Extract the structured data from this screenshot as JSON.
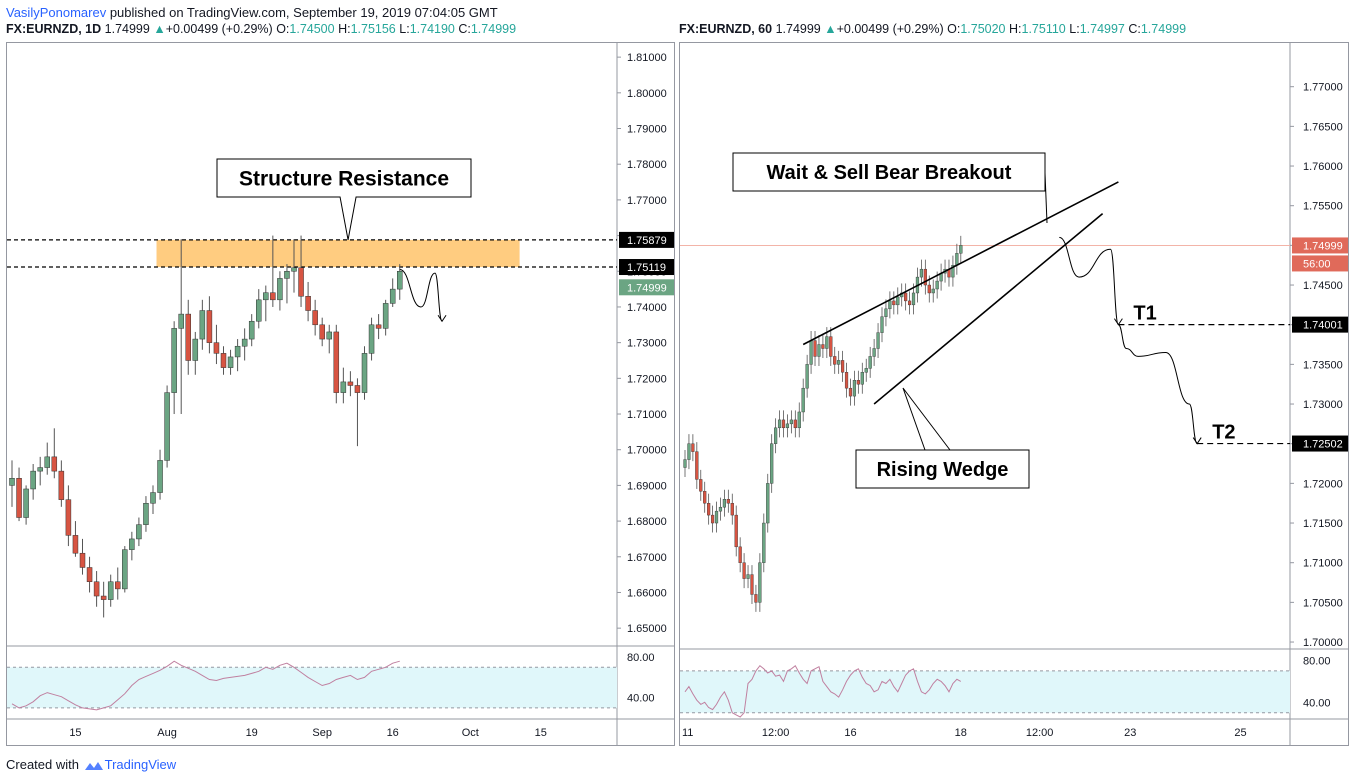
{
  "header": {
    "author": "VasilyPonomarev",
    "published_text": "published on TradingView.com, September 19, 2019 07:04:05 GMT"
  },
  "footer": {
    "created_with": "Created with",
    "brand": "TradingView"
  },
  "colors": {
    "up": "#6ba583",
    "down": "#d75442",
    "resistance_zone": "#ffcc80",
    "rsi_band": "#e0f7fa",
    "rsi_line": "#c080a0",
    "price_label_bg": "#000000",
    "current_price_up_bg": "#6ba583",
    "current_price_down_bg": "#e06a5a"
  },
  "icons": [
    "tradingview-logo-icon",
    "up-arrow-icon"
  ],
  "chart_data": [
    {
      "type": "candlestick",
      "symbol": "FX:EURNZD",
      "interval": "1D",
      "last": "1.74999",
      "change": "+0.00499 (+0.29%)",
      "ohlc": {
        "O": "1.74500",
        "H": "1.75156",
        "L": "1.74190",
        "C": "1.74999"
      },
      "ylim": [
        1.645,
        1.812
      ],
      "y_ticks": [
        "1.81000",
        "1.80000",
        "1.79000",
        "1.78000",
        "1.77000",
        "1.76000",
        "1.75000",
        "1.74000",
        "1.73000",
        "1.72000",
        "1.71000",
        "1.70000",
        "1.69000",
        "1.68000",
        "1.67000",
        "1.66000",
        "1.65000"
      ],
      "x_ticks": [
        {
          "label": "15",
          "index": 9
        },
        {
          "label": "Aug",
          "index": 22
        },
        {
          "label": "19",
          "index": 34
        },
        {
          "label": "Sep",
          "index": 44
        },
        {
          "label": "16",
          "index": 54
        },
        {
          "label": "Oct",
          "index": 65
        },
        {
          "label": "15",
          "index": 75
        }
      ],
      "candles": [
        {
          "o": 1.69,
          "h": 1.697,
          "l": 1.684,
          "c": 1.692
        },
        {
          "o": 1.692,
          "h": 1.695,
          "l": 1.68,
          "c": 1.681
        },
        {
          "o": 1.681,
          "h": 1.69,
          "l": 1.679,
          "c": 1.689
        },
        {
          "o": 1.689,
          "h": 1.696,
          "l": 1.686,
          "c": 1.694
        },
        {
          "o": 1.694,
          "h": 1.698,
          "l": 1.69,
          "c": 1.695
        },
        {
          "o": 1.695,
          "h": 1.702,
          "l": 1.693,
          "c": 1.698
        },
        {
          "o": 1.698,
          "h": 1.706,
          "l": 1.692,
          "c": 1.694
        },
        {
          "o": 1.694,
          "h": 1.697,
          "l": 1.684,
          "c": 1.686
        },
        {
          "o": 1.686,
          "h": 1.69,
          "l": 1.673,
          "c": 1.676
        },
        {
          "o": 1.676,
          "h": 1.68,
          "l": 1.67,
          "c": 1.671
        },
        {
          "o": 1.671,
          "h": 1.675,
          "l": 1.665,
          "c": 1.667
        },
        {
          "o": 1.667,
          "h": 1.67,
          "l": 1.66,
          "c": 1.663
        },
        {
          "o": 1.663,
          "h": 1.666,
          "l": 1.656,
          "c": 1.659
        },
        {
          "o": 1.659,
          "h": 1.663,
          "l": 1.653,
          "c": 1.658
        },
        {
          "o": 1.658,
          "h": 1.665,
          "l": 1.656,
          "c": 1.663
        },
        {
          "o": 1.663,
          "h": 1.667,
          "l": 1.658,
          "c": 1.661
        },
        {
          "o": 1.661,
          "h": 1.673,
          "l": 1.66,
          "c": 1.672
        },
        {
          "o": 1.672,
          "h": 1.677,
          "l": 1.669,
          "c": 1.675
        },
        {
          "o": 1.675,
          "h": 1.681,
          "l": 1.673,
          "c": 1.679
        },
        {
          "o": 1.679,
          "h": 1.687,
          "l": 1.677,
          "c": 1.685
        },
        {
          "o": 1.685,
          "h": 1.69,
          "l": 1.682,
          "c": 1.688
        },
        {
          "o": 1.688,
          "h": 1.7,
          "l": 1.686,
          "c": 1.697
        },
        {
          "o": 1.697,
          "h": 1.718,
          "l": 1.695,
          "c": 1.716
        },
        {
          "o": 1.716,
          "h": 1.736,
          "l": 1.71,
          "c": 1.734
        },
        {
          "o": 1.734,
          "h": 1.759,
          "l": 1.71,
          "c": 1.738
        },
        {
          "o": 1.738,
          "h": 1.742,
          "l": 1.721,
          "c": 1.725
        },
        {
          "o": 1.725,
          "h": 1.733,
          "l": 1.721,
          "c": 1.731
        },
        {
          "o": 1.731,
          "h": 1.742,
          "l": 1.728,
          "c": 1.739
        },
        {
          "o": 1.739,
          "h": 1.743,
          "l": 1.727,
          "c": 1.73
        },
        {
          "o": 1.73,
          "h": 1.735,
          "l": 1.724,
          "c": 1.727
        },
        {
          "o": 1.727,
          "h": 1.729,
          "l": 1.721,
          "c": 1.723
        },
        {
          "o": 1.723,
          "h": 1.728,
          "l": 1.721,
          "c": 1.726
        },
        {
          "o": 1.726,
          "h": 1.731,
          "l": 1.722,
          "c": 1.729
        },
        {
          "o": 1.729,
          "h": 1.734,
          "l": 1.725,
          "c": 1.731
        },
        {
          "o": 1.731,
          "h": 1.738,
          "l": 1.729,
          "c": 1.736
        },
        {
          "o": 1.736,
          "h": 1.745,
          "l": 1.734,
          "c": 1.742
        },
        {
          "o": 1.742,
          "h": 1.746,
          "l": 1.736,
          "c": 1.744
        },
        {
          "o": 1.744,
          "h": 1.76,
          "l": 1.74,
          "c": 1.742
        },
        {
          "o": 1.742,
          "h": 1.75,
          "l": 1.739,
          "c": 1.748
        },
        {
          "o": 1.748,
          "h": 1.752,
          "l": 1.741,
          "c": 1.75
        },
        {
          "o": 1.75,
          "h": 1.759,
          "l": 1.744,
          "c": 1.751
        },
        {
          "o": 1.751,
          "h": 1.76,
          "l": 1.74,
          "c": 1.743
        },
        {
          "o": 1.743,
          "h": 1.747,
          "l": 1.736,
          "c": 1.739
        },
        {
          "o": 1.739,
          "h": 1.742,
          "l": 1.732,
          "c": 1.735
        },
        {
          "o": 1.735,
          "h": 1.737,
          "l": 1.729,
          "c": 1.731
        },
        {
          "o": 1.731,
          "h": 1.735,
          "l": 1.727,
          "c": 1.733
        },
        {
          "o": 1.733,
          "h": 1.735,
          "l": 1.713,
          "c": 1.716
        },
        {
          "o": 1.716,
          "h": 1.723,
          "l": 1.713,
          "c": 1.719
        },
        {
          "o": 1.719,
          "h": 1.722,
          "l": 1.715,
          "c": 1.718
        },
        {
          "o": 1.718,
          "h": 1.72,
          "l": 1.701,
          "c": 1.716
        },
        {
          "o": 1.716,
          "h": 1.729,
          "l": 1.714,
          "c": 1.727
        },
        {
          "o": 1.727,
          "h": 1.737,
          "l": 1.725,
          "c": 1.735
        },
        {
          "o": 1.735,
          "h": 1.738,
          "l": 1.731,
          "c": 1.734
        },
        {
          "o": 1.734,
          "h": 1.742,
          "l": 1.732,
          "c": 1.741
        },
        {
          "o": 1.741,
          "h": 1.748,
          "l": 1.74,
          "c": 1.745
        },
        {
          "o": 1.745,
          "h": 1.752,
          "l": 1.742,
          "c": 1.75
        }
      ],
      "rsi": {
        "levels": [
          "80.00",
          "40.00"
        ],
        "band": [
          30,
          70
        ],
        "ylim": [
          20,
          90
        ],
        "values": [
          34,
          30,
          32,
          36,
          42,
          45,
          43,
          41,
          37,
          33,
          30,
          29,
          28,
          30,
          32,
          38,
          44,
          52,
          58,
          61,
          64,
          67,
          71,
          76,
          72,
          69,
          66,
          62,
          58,
          57,
          59,
          60,
          61,
          62,
          64,
          66,
          70,
          68,
          72,
          74,
          70,
          65,
          60,
          56,
          52,
          54,
          58,
          60,
          62,
          58,
          60,
          66,
          68,
          70,
          74,
          76
        ]
      },
      "price_labels": [
        "1.75879",
        "1.75119",
        "1.74999"
      ],
      "resistance_zone": [
        1.75119,
        1.75879
      ],
      "projection": [
        [
          55,
          1.7505
        ],
        [
          58,
          1.74
        ],
        [
          60,
          1.7495
        ],
        [
          61,
          1.736
        ]
      ],
      "annotations": {
        "structure": "Structure Resistance"
      }
    },
    {
      "type": "candlestick",
      "symbol": "FX:EURNZD",
      "interval": "60",
      "last": "1.74999",
      "change": "+0.00499 (+0.29%)",
      "ohlc": {
        "O": "1.75020",
        "H": "1.75110",
        "L": "1.74997",
        "C": "1.74999"
      },
      "ylim": [
        1.6995,
        1.7745
      ],
      "y_ticks": [
        "1.77000",
        "1.76500",
        "1.76000",
        "1.75500",
        "1.75000",
        "1.74500",
        "1.74000",
        "1.73500",
        "1.73000",
        "1.72500",
        "1.72000",
        "1.71500",
        "1.71000",
        "1.70500",
        "1.70000"
      ],
      "x_ticks": [
        {
          "label": "11",
          "index": 0
        },
        {
          "label": "12:00",
          "index": 23
        },
        {
          "label": "16",
          "index": 42
        },
        {
          "label": "18",
          "index": 70
        },
        {
          "label": "12:00",
          "index": 90
        },
        {
          "label": "23",
          "index": 113
        },
        {
          "label": "25",
          "index": 141
        }
      ],
      "close": [
        1.723,
        1.725,
        1.724,
        1.7205,
        1.719,
        1.7175,
        1.716,
        1.715,
        1.7165,
        1.717,
        1.718,
        1.7175,
        1.716,
        1.712,
        1.71,
        1.708,
        1.7085,
        1.706,
        1.705,
        1.71,
        1.715,
        1.72,
        1.725,
        1.727,
        1.728,
        1.727,
        1.7275,
        1.728,
        1.727,
        1.729,
        1.732,
        1.735,
        1.738,
        1.736,
        1.7375,
        1.737,
        1.7385,
        1.736,
        1.735,
        1.7355,
        1.734,
        1.732,
        1.731,
        1.733,
        1.7325,
        1.734,
        1.7345,
        1.736,
        1.737,
        1.739,
        1.741,
        1.742,
        1.743,
        1.7425,
        1.7435,
        1.744,
        1.743,
        1.7425,
        1.744,
        1.746,
        1.747,
        1.745,
        1.744,
        1.7445,
        1.7455,
        1.7465,
        1.747,
        1.746,
        1.7475,
        1.749,
        1.75
      ],
      "rsi": {
        "levels": [
          "80.00",
          "40.00"
        ],
        "band": [
          30,
          70
        ],
        "ylim": [
          25,
          90
        ],
        "values": [
          50,
          55,
          48,
          42,
          38,
          40,
          35,
          33,
          38,
          45,
          50,
          42,
          30,
          28,
          26,
          30,
          58,
          62,
          70,
          75,
          72,
          68,
          70,
          65,
          66,
          60,
          70,
          72,
          75,
          68,
          62,
          58,
          70,
          72,
          74,
          60,
          55,
          50,
          48,
          45,
          52,
          60,
          66,
          70,
          72,
          64,
          58,
          56,
          50,
          52,
          60,
          58,
          62,
          55,
          50,
          58,
          66,
          70,
          72,
          60,
          50,
          48,
          52,
          58,
          62,
          60,
          56,
          50,
          58,
          62,
          60
        ]
      },
      "wedge_upper": [
        [
          30,
          1.7375
        ],
        [
          110,
          1.758
        ]
      ],
      "wedge_lower": [
        [
          48,
          1.73
        ],
        [
          106,
          1.754
        ]
      ],
      "projection": [
        [
          95,
          1.751
        ],
        [
          100,
          1.746
        ],
        [
          108,
          1.7495
        ],
        [
          110,
          1.74
        ],
        [
          112,
          1.737
        ],
        [
          115,
          1.736
        ],
        [
          122,
          1.7365
        ],
        [
          128,
          1.73
        ],
        [
          130,
          1.725
        ]
      ],
      "targets": [
        {
          "label": "T1",
          "price": 1.74001
        },
        {
          "label": "T2",
          "price": 1.72502
        }
      ],
      "price_labels": [
        "1.74999",
        "56:00",
        "1.74001",
        "1.72502"
      ],
      "annotations": {
        "breakout": "Wait & Sell Bear Breakout",
        "wedge": "Rising Wedge"
      }
    }
  ]
}
